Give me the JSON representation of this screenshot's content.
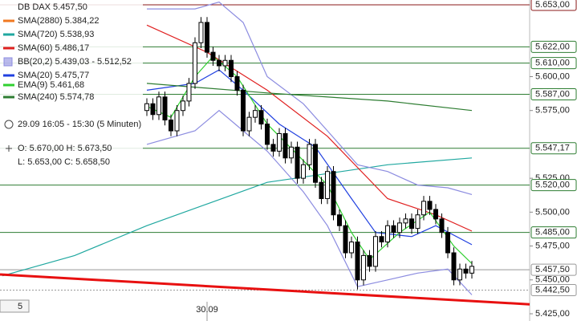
{
  "chart_data": {
    "type": "candlestick",
    "title": "DB DAX 5.457,50",
    "time_range": "29.09 16:05 - 15:30 (5 Minuten)",
    "ohlc_line1": "O: 5.670,00 H: 5.673,50",
    "ohlc_line2": "L: 5.653,00 C: 5.658,50",
    "footer_label": "5",
    "categories": [
      null,
      null,
      null,
      null,
      null,
      null,
      null,
      null,
      null,
      null,
      "30.09",
      null,
      null,
      null,
      null,
      null,
      null,
      null,
      null,
      null,
      null,
      null,
      null,
      null,
      null,
      null,
      null,
      null,
      null,
      null,
      null,
      null,
      null,
      null,
      null,
      null,
      null,
      null,
      null,
      null,
      null,
      null,
      null,
      null,
      null,
      null,
      null,
      null,
      null,
      null,
      null,
      null,
      null,
      null,
      null
    ],
    "open": [
      5575,
      5580,
      5572,
      5585,
      5568,
      5560,
      5575,
      5582,
      5595,
      5625,
      5640,
      5618,
      5612,
      5608,
      5612,
      5600,
      5590,
      5560,
      5570,
      5575,
      5565,
      5550,
      5545,
      5558,
      5540,
      5548,
      5525,
      5535,
      5550,
      5522,
      5510,
      5530,
      5498,
      5490,
      5470,
      5478,
      5450,
      5468,
      5460,
      5482,
      5478,
      5490,
      5485,
      5492,
      5495,
      5488,
      5498,
      5508,
      5502,
      5495,
      5485,
      5470,
      5450,
      5458,
      5455
    ],
    "high": [
      5584,
      5584,
      5589,
      5589,
      5572,
      5579,
      5586,
      5599,
      5629,
      5644,
      5644,
      5622,
      5616,
      5616,
      5616,
      5604,
      5594,
      5574,
      5579,
      5579,
      5569,
      5554,
      5562,
      5562,
      5552,
      5552,
      5539,
      5554,
      5554,
      5526,
      5534,
      5534,
      5502,
      5494,
      5482,
      5482,
      5472,
      5472,
      5486,
      5486,
      5494,
      5494,
      5496,
      5499,
      5499,
      5502,
      5512,
      5512,
      5506,
      5499,
      5489,
      5474,
      5462,
      5462,
      5464
    ],
    "low": [
      5571,
      5568,
      5568,
      5564,
      5556,
      5556,
      5571,
      5578,
      5591,
      5621,
      5614,
      5608,
      5604,
      5604,
      5596,
      5586,
      5556,
      5556,
      5566,
      5561,
      5546,
      5541,
      5541,
      5536,
      5536,
      5521,
      5521,
      5531,
      5518,
      5506,
      5506,
      5494,
      5486,
      5466,
      5466,
      5443,
      5446,
      5456,
      5456,
      5474,
      5474,
      5481,
      5481,
      5488,
      5484,
      5484,
      5494,
      5498,
      5491,
      5481,
      5466,
      5446,
      5446,
      5451,
      5451
    ],
    "close": [
      5580,
      5572,
      5585,
      5568,
      5560,
      5575,
      5582,
      5595,
      5625,
      5640,
      5618,
      5612,
      5608,
      5612,
      5600,
      5590,
      5560,
      5570,
      5575,
      5565,
      5550,
      5545,
      5558,
      5540,
      5548,
      5525,
      5535,
      5550,
      5522,
      5510,
      5530,
      5498,
      5490,
      5470,
      5478,
      5450,
      5468,
      5460,
      5482,
      5478,
      5490,
      5485,
      5492,
      5495,
      5488,
      5498,
      5508,
      5502,
      5495,
      5485,
      5470,
      5450,
      5458,
      5455,
      5460
    ],
    "xlim": [
      -24.4,
      63.6
    ],
    "ylim": [
      5425,
      5653
    ],
    "yticks": [
      {
        "value": 5425,
        "label": "5.425,00"
      },
      {
        "value": 5450,
        "label": "5.450,00"
      },
      {
        "value": 5475,
        "label": "5.475,00"
      },
      {
        "value": 5500,
        "label": "5.500,00"
      },
      {
        "value": 5525,
        "label": "5.525,00"
      },
      {
        "value": 5575,
        "label": "5.575,00"
      },
      {
        "value": 5600,
        "label": "5.600,00"
      }
    ],
    "levels": [
      {
        "value": 5653,
        "label": "5.653,00",
        "color": "#8b1a1a"
      },
      {
        "value": 5622,
        "label": "5.622,00",
        "color": "#2e7d32"
      },
      {
        "value": 5610,
        "label": "5.610,00",
        "color": "#2e7d32"
      },
      {
        "value": 5587,
        "label": "5.587,00",
        "color": "#2e7d32"
      },
      {
        "value": 5547.17,
        "label": "5.547,17",
        "color": "#2e7d32"
      },
      {
        "value": 5520,
        "label": "5.520,00",
        "color": "#2e7d32"
      },
      {
        "value": 5485,
        "label": "5.485,00",
        "color": "#2e7d32"
      },
      {
        "value": 5457.5,
        "label": "5.457,50",
        "color": "#999999"
      },
      {
        "value": 5442.5,
        "label": "5.442,50",
        "color": "#999999"
      }
    ],
    "indicators": [
      {
        "name": "SMA(2880) 5.384,22",
        "color": "#f07820",
        "x": [],
        "values": []
      },
      {
        "name": "SMA(720) 5.538,93",
        "color": "#20a8a0",
        "x": [
          -24,
          -12,
          0,
          20,
          40,
          54
        ],
        "values": [
          5453,
          5468,
          5490,
          5522,
          5535,
          5540
        ]
      },
      {
        "name": "SMA(60) 5.486,17",
        "color": "#e02020",
        "x": [
          0,
          10,
          20,
          30,
          40,
          48,
          54
        ],
        "values": [
          5638,
          5618,
          5590,
          5556,
          5510,
          5498,
          5486
        ]
      },
      {
        "name": "BB(20,2) 5.439,03 - 5.512,52",
        "color": "#8c8ce0",
        "band": true,
        "x": [
          0,
          8,
          12,
          16,
          20,
          26,
          30,
          35,
          40,
          45,
          50,
          54
        ],
        "values": [
          5650,
          5650,
          5655,
          5640,
          5600,
          5580,
          5560,
          5535,
          5530,
          5520,
          5518,
          5513
        ],
        "lower": [
          5550,
          5560,
          5575,
          5560,
          5545,
          5515,
          5490,
          5445,
          5450,
          5455,
          5458,
          5439
        ]
      },
      {
        "name": "SMA(20) 5.475,77",
        "color": "#2040e0",
        "x": [
          0,
          8,
          12,
          16,
          22,
          28,
          34,
          38,
          44,
          48,
          54
        ],
        "values": [
          5590,
          5595,
          5605,
          5590,
          5565,
          5548,
          5510,
          5485,
          5482,
          5490,
          5476
        ]
      },
      {
        "name": "EMA(9) 5.461,68",
        "color": "#30d030",
        "x": [
          0,
          4,
          8,
          11,
          15,
          20,
          26,
          30,
          34,
          37,
          42,
          47,
          51,
          54
        ],
        "values": [
          5578,
          5570,
          5600,
          5615,
          5600,
          5565,
          5538,
          5520,
          5485,
          5465,
          5485,
          5500,
          5475,
          5462
        ]
      },
      {
        "name": "SMA(240) 5.574,78",
        "color": "#2e7d32",
        "x": [
          0,
          20,
          40,
          54
        ],
        "values": [
          5595,
          5588,
          5582,
          5575
        ]
      }
    ],
    "trendline": {
      "color": "#e81010",
      "x": [
        -24.4,
        63.6
      ],
      "values": [
        5454,
        5432
      ]
    }
  }
}
